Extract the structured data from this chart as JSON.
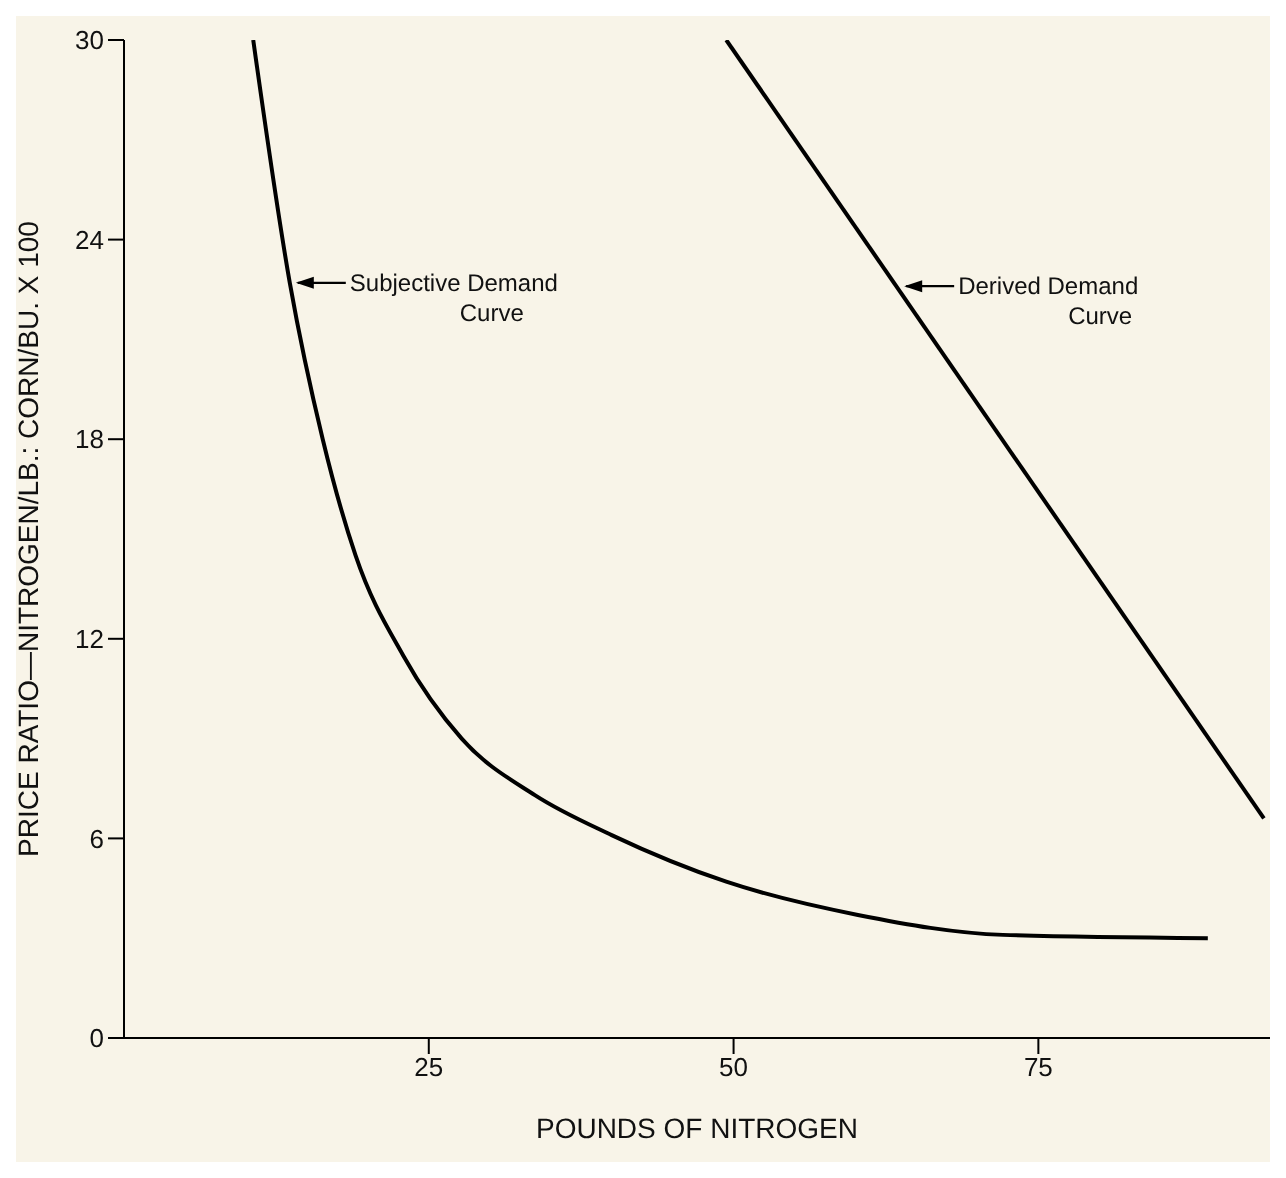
{
  "chart_data": {
    "type": "line",
    "xlabel": "POUNDS OF NITROGEN",
    "ylabel": "PRICE RATIO—NITROGEN/LB.: CORN/BU. X 100",
    "series": [
      {
        "color": "#000000",
        "x": [
          10.6,
          13.6,
          16.3,
          19,
          22.9,
          27.7,
          33.7,
          40,
          49.4,
          60.2,
          72.1,
          88.9
        ],
        "values": [
          30,
          22.7,
          18,
          14.5,
          11.5,
          9,
          7.3,
          6.1,
          4.7,
          3.7,
          3.1,
          3
        ]
      },
      {
        "color": "#000000",
        "x": [
          49.4,
          93.5
        ],
        "values": [
          30,
          6.6
        ]
      }
    ],
    "annotations": [
      {
        "text": "Subjective Demand\nCurve",
        "x": 13.6,
        "y": 22.7
      },
      {
        "text": "Derived Demand\nCurve",
        "x": 63.5,
        "y": 22.6
      }
    ],
    "xlim": [
      0,
      94
    ],
    "xticks": [
      25,
      50,
      75
    ],
    "ylim": [
      0,
      30
    ],
    "yticks": [
      0,
      6,
      12,
      18,
      24,
      30
    ],
    "marker": "none",
    "line_style": "solid"
  }
}
